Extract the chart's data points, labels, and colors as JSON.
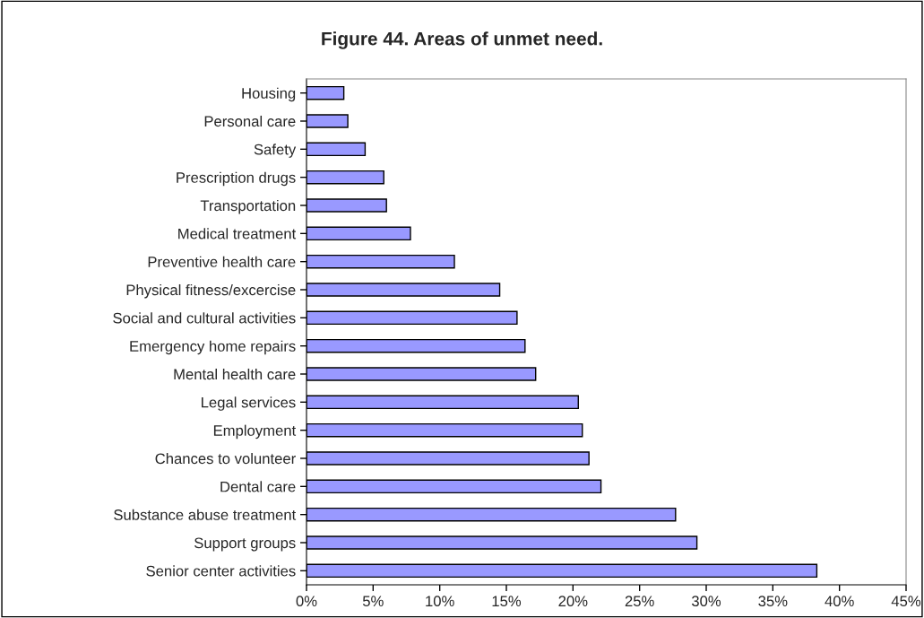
{
  "chart_data": {
    "type": "bar",
    "orientation": "horizontal",
    "title": "Figure 44. Areas of unmet need.",
    "categories": [
      "Housing",
      "Personal care",
      "Safety",
      "Prescription drugs",
      "Transportation",
      "Medical treatment",
      "Preventive health care",
      "Physical fitness/excercise",
      "Social and cultural activities",
      "Emergency home repairs",
      "Mental health care",
      "Legal services",
      "Employment",
      "Chances to volunteer",
      "Dental care",
      "Substance abuse treatment",
      "Support groups",
      "Senior center activities"
    ],
    "values": [
      2.8,
      3.1,
      4.4,
      5.8,
      6.0,
      7.8,
      11.1,
      14.5,
      15.8,
      16.4,
      17.2,
      20.4,
      20.7,
      21.2,
      22.1,
      27.7,
      29.3,
      38.3
    ],
    "color": "#9999ff",
    "xlim": [
      0,
      45
    ],
    "xticks": [
      {
        "value": 0,
        "label": "0%"
      },
      {
        "value": 5,
        "label": "5%"
      },
      {
        "value": 10,
        "label": "10%"
      },
      {
        "value": 15,
        "label": "15%"
      },
      {
        "value": 20,
        "label": "20%"
      },
      {
        "value": 25,
        "label": "25%"
      },
      {
        "value": 30,
        "label": "30%"
      },
      {
        "value": 35,
        "label": "35%"
      },
      {
        "value": 40,
        "label": "40%"
      },
      {
        "value": 45,
        "label": "45%"
      }
    ],
    "grid": false,
    "legend": false
  }
}
